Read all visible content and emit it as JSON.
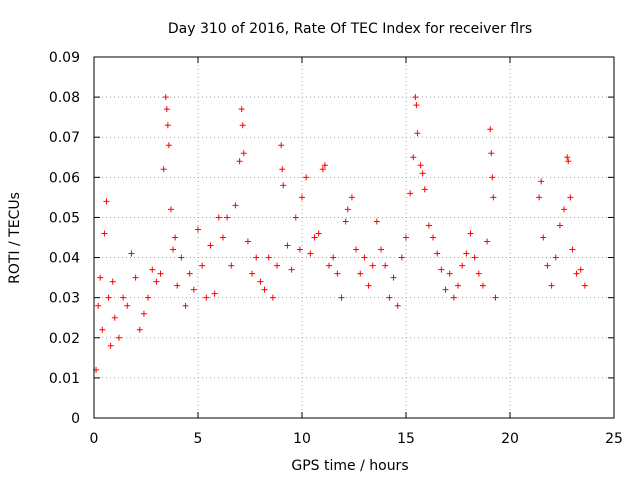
{
  "chart_data": {
    "type": "scatter",
    "title": "Day 310 of 2016, Rate Of TEC Index for receiver flrs",
    "xlabel": "GPS time / hours",
    "ylabel": "ROTI / TECUs",
    "xlim": [
      0,
      25
    ],
    "ylim": [
      0,
      0.09
    ],
    "x_ticks": [
      0,
      5,
      10,
      15,
      20,
      25
    ],
    "y_ticks": [
      0,
      0.01,
      0.02,
      0.03,
      0.04,
      0.05,
      0.06,
      0.07,
      0.08,
      0.09
    ],
    "x_tick_labels": [
      "0",
      "5",
      "10",
      "15",
      "20",
      "25"
    ],
    "y_tick_labels": [
      "0",
      "0.01",
      "0.02",
      "0.03",
      "0.04",
      "0.05",
      "0.06",
      "0.07",
      "0.08",
      "0.09"
    ],
    "grid": true,
    "marker": "+",
    "marker_color": "#ff0000",
    "legend": "none",
    "series": [
      {
        "points": [
          [
            0.1,
            0.012
          ],
          [
            0.2,
            0.028
          ],
          [
            0.3,
            0.035
          ],
          [
            0.4,
            0.022
          ],
          [
            0.5,
            0.046
          ],
          [
            0.6,
            0.054
          ],
          [
            0.7,
            0.03
          ],
          [
            0.8,
            0.018
          ],
          [
            0.9,
            0.034
          ],
          [
            1.0,
            0.025
          ],
          [
            1.2,
            0.02
          ],
          [
            1.4,
            0.03
          ],
          [
            1.6,
            0.028
          ],
          [
            1.8,
            0.041
          ],
          [
            2.0,
            0.035
          ],
          [
            2.2,
            0.022
          ],
          [
            2.4,
            0.026
          ],
          [
            2.6,
            0.03
          ],
          [
            2.8,
            0.037
          ],
          [
            3.0,
            0.034
          ],
          [
            3.2,
            0.036
          ],
          [
            3.35,
            0.062
          ],
          [
            3.45,
            0.08
          ],
          [
            3.5,
            0.077
          ],
          [
            3.55,
            0.073
          ],
          [
            3.6,
            0.068
          ],
          [
            3.7,
            0.052
          ],
          [
            3.8,
            0.042
          ],
          [
            3.9,
            0.045
          ],
          [
            4.0,
            0.033
          ],
          [
            4.2,
            0.04
          ],
          [
            4.4,
            0.028
          ],
          [
            4.6,
            0.036
          ],
          [
            4.8,
            0.032
          ],
          [
            5.0,
            0.047
          ],
          [
            5.2,
            0.038
          ],
          [
            5.4,
            0.03
          ],
          [
            5.6,
            0.043
          ],
          [
            5.8,
            0.031
          ],
          [
            6.0,
            0.05
          ],
          [
            6.2,
            0.045
          ],
          [
            6.4,
            0.05
          ],
          [
            6.6,
            0.038
          ],
          [
            6.8,
            0.053
          ],
          [
            7.0,
            0.064
          ],
          [
            7.1,
            0.077
          ],
          [
            7.15,
            0.073
          ],
          [
            7.2,
            0.066
          ],
          [
            7.4,
            0.044
          ],
          [
            7.6,
            0.036
          ],
          [
            7.8,
            0.04
          ],
          [
            8.0,
            0.034
          ],
          [
            8.2,
            0.032
          ],
          [
            8.4,
            0.04
          ],
          [
            8.6,
            0.03
          ],
          [
            8.8,
            0.038
          ],
          [
            9.0,
            0.068
          ],
          [
            9.05,
            0.062
          ],
          [
            9.1,
            0.058
          ],
          [
            9.3,
            0.043
          ],
          [
            9.5,
            0.037
          ],
          [
            9.7,
            0.05
          ],
          [
            9.9,
            0.042
          ],
          [
            10.0,
            0.055
          ],
          [
            10.2,
            0.06
          ],
          [
            10.4,
            0.041
          ],
          [
            10.6,
            0.045
          ],
          [
            10.8,
            0.046
          ],
          [
            11.0,
            0.062
          ],
          [
            11.1,
            0.063
          ],
          [
            11.3,
            0.038
          ],
          [
            11.5,
            0.04
          ],
          [
            11.7,
            0.036
          ],
          [
            11.9,
            0.03
          ],
          [
            12.1,
            0.049
          ],
          [
            12.2,
            0.052
          ],
          [
            12.4,
            0.055
          ],
          [
            12.6,
            0.042
          ],
          [
            12.8,
            0.036
          ],
          [
            13.0,
            0.04
          ],
          [
            13.2,
            0.033
          ],
          [
            13.4,
            0.038
          ],
          [
            13.6,
            0.049
          ],
          [
            13.8,
            0.042
          ],
          [
            14.0,
            0.038
          ],
          [
            14.2,
            0.03
          ],
          [
            14.4,
            0.035
          ],
          [
            14.6,
            0.028
          ],
          [
            14.8,
            0.04
          ],
          [
            15.0,
            0.045
          ],
          [
            15.2,
            0.056
          ],
          [
            15.35,
            0.065
          ],
          [
            15.45,
            0.08
          ],
          [
            15.5,
            0.078
          ],
          [
            15.55,
            0.071
          ],
          [
            15.7,
            0.063
          ],
          [
            15.8,
            0.061
          ],
          [
            15.9,
            0.057
          ],
          [
            16.1,
            0.048
          ],
          [
            16.3,
            0.045
          ],
          [
            16.5,
            0.041
          ],
          [
            16.7,
            0.037
          ],
          [
            16.9,
            0.032
          ],
          [
            17.1,
            0.036
          ],
          [
            17.3,
            0.03
          ],
          [
            17.5,
            0.033
          ],
          [
            17.7,
            0.038
          ],
          [
            17.9,
            0.041
          ],
          [
            18.1,
            0.046
          ],
          [
            18.3,
            0.04
          ],
          [
            18.5,
            0.036
          ],
          [
            18.7,
            0.033
          ],
          [
            18.9,
            0.044
          ],
          [
            19.05,
            0.072
          ],
          [
            19.1,
            0.066
          ],
          [
            19.15,
            0.06
          ],
          [
            19.2,
            0.055
          ],
          [
            19.3,
            0.03
          ],
          [
            21.4,
            0.055
          ],
          [
            21.5,
            0.059
          ],
          [
            21.6,
            0.045
          ],
          [
            21.8,
            0.038
          ],
          [
            22.0,
            0.033
          ],
          [
            22.2,
            0.04
          ],
          [
            22.4,
            0.048
          ],
          [
            22.6,
            0.052
          ],
          [
            22.75,
            0.065
          ],
          [
            22.8,
            0.064
          ],
          [
            22.9,
            0.055
          ],
          [
            23.0,
            0.042
          ],
          [
            23.2,
            0.036
          ],
          [
            23.4,
            0.037
          ],
          [
            23.6,
            0.033
          ]
        ]
      }
    ]
  }
}
